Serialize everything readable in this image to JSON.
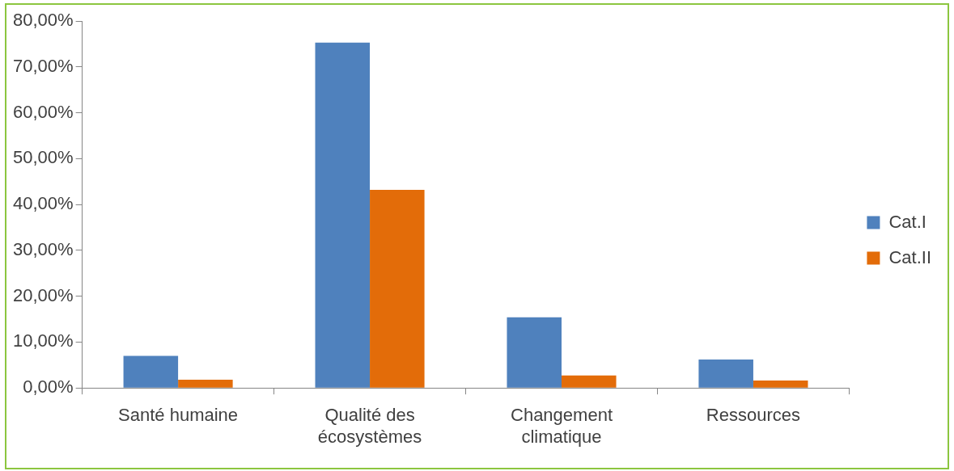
{
  "chart_data": {
    "type": "bar",
    "categories": [
      "Santé humaine",
      "Qualité des écosystèmes",
      "Changement climatique",
      "Ressources"
    ],
    "series": [
      {
        "name": "Cat.I",
        "color": "#4f81bd",
        "values": [
          7.0,
          75.3,
          15.4,
          6.2
        ]
      },
      {
        "name": "Cat.II",
        "color": "#e36c09",
        "values": [
          1.8,
          43.2,
          2.7,
          1.6
        ]
      }
    ],
    "ylim": [
      0,
      80
    ],
    "yticks": [
      {
        "value": 0,
        "label": "0,00%"
      },
      {
        "value": 10,
        "label": "10,00%"
      },
      {
        "value": 20,
        "label": "20,00%"
      },
      {
        "value": 30,
        "label": "30,00%"
      },
      {
        "value": 40,
        "label": "40,00%"
      },
      {
        "value": 50,
        "label": "50,00%"
      },
      {
        "value": 60,
        "label": "60,00%"
      },
      {
        "value": 70,
        "label": "70,00%"
      },
      {
        "value": 80,
        "label": "80,00%"
      }
    ],
    "grid": false,
    "legend": "right"
  }
}
